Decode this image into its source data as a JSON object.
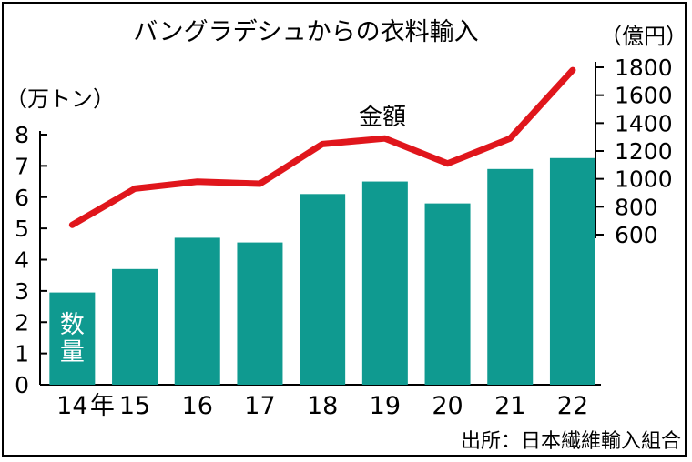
{
  "chart_data": {
    "type": "bar",
    "title": "バングラデシュからの衣料輸入",
    "source": "出所：日本繊維輸入組合",
    "categories": [
      "14",
      "15",
      "16",
      "17",
      "18",
      "19",
      "20",
      "21",
      "22"
    ],
    "first_category_suffix": "年",
    "left_axis": {
      "unit": "（万トン）",
      "ylim": [
        0,
        8
      ],
      "ticks": [
        "0",
        "1",
        "2",
        "3",
        "4",
        "5",
        "6",
        "7",
        "8"
      ]
    },
    "right_axis": {
      "unit": "（億円）",
      "ylim": [
        600,
        1800
      ],
      "ticks": [
        "600",
        "800",
        "1000",
        "1200",
        "1400",
        "1600",
        "1800"
      ]
    },
    "series": [
      {
        "name": "数量",
        "label_lines": [
          "数",
          "量"
        ],
        "type": "bar",
        "axis": "left",
        "color": "#0f9a90",
        "values": [
          2.95,
          3.7,
          4.7,
          4.55,
          6.1,
          6.5,
          5.8,
          6.9,
          7.25
        ]
      },
      {
        "name": "金額",
        "type": "line",
        "axis": "right",
        "color": "#e0161c",
        "values": [
          670,
          930,
          980,
          965,
          1250,
          1290,
          1110,
          1290,
          1780
        ]
      }
    ]
  }
}
